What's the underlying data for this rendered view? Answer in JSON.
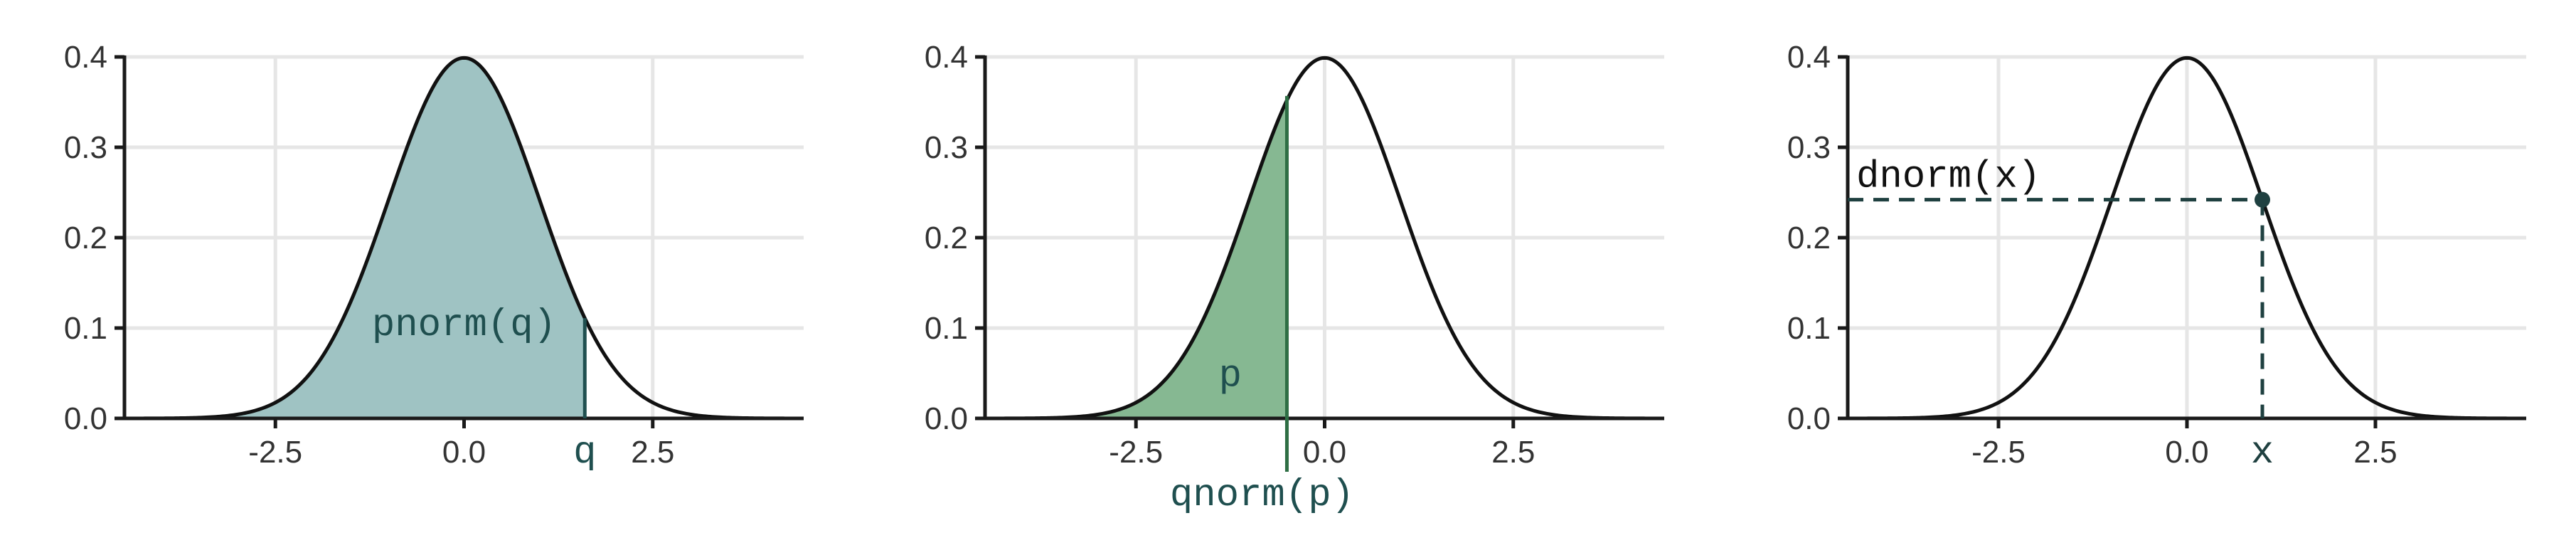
{
  "chart_data": [
    {
      "type": "area",
      "function": "standard normal density",
      "x_ticks": [
        -2.5,
        0.0,
        2.5
      ],
      "x_tick_labels": [
        "-2.5",
        "0.0",
        "2.5"
      ],
      "y_ticks": [
        0.0,
        0.1,
        0.2,
        0.3,
        0.4
      ],
      "y_tick_labels": [
        "0.0",
        "0.1",
        "0.2",
        "0.3",
        "0.4"
      ],
      "xlim": [
        -4.5,
        4.5
      ],
      "ylim": [
        0,
        0.4
      ],
      "grid": true,
      "shaded_region": {
        "from": -4.5,
        "to": 1.6,
        "color": "#9fc3c3"
      },
      "marker_x": 1.6,
      "marker_label": "q",
      "annotation": "pnorm(q)",
      "accent_color": "#1f4f4f"
    },
    {
      "type": "area",
      "function": "standard normal density",
      "x_ticks": [
        -2.5,
        0.0,
        2.5
      ],
      "x_tick_labels": [
        "-2.5",
        "0.0",
        "2.5"
      ],
      "y_ticks": [
        0.0,
        0.1,
        0.2,
        0.3,
        0.4
      ],
      "y_tick_labels": [
        "0.0",
        "0.1",
        "0.2",
        "0.3",
        "0.4"
      ],
      "xlim": [
        -4.5,
        4.5
      ],
      "ylim": [
        0,
        0.4
      ],
      "grid": true,
      "shaded_region": {
        "from": -4.5,
        "to": -0.5,
        "color": "#86b892"
      },
      "marker_x": -0.5,
      "marker_label": "qnorm(p)",
      "annotation": "p",
      "accent_color": "#2e6e44"
    },
    {
      "type": "line",
      "function": "standard normal density",
      "x_ticks": [
        -2.5,
        0.0,
        2.5
      ],
      "x_tick_labels": [
        "-2.5",
        "0.0",
        "2.5"
      ],
      "y_ticks": [
        0.0,
        0.1,
        0.2,
        0.3,
        0.4
      ],
      "y_tick_labels": [
        "0.0",
        "0.1",
        "0.2",
        "0.3",
        "0.4"
      ],
      "xlim": [
        -4.5,
        4.5
      ],
      "ylim": [
        0,
        0.4
      ],
      "grid": true,
      "point": {
        "x": 1.0,
        "y": 0.242
      },
      "marker_x": 1.0,
      "marker_label": "x",
      "annotation": "dnorm(x)",
      "accent_color": "#1f4040"
    }
  ]
}
